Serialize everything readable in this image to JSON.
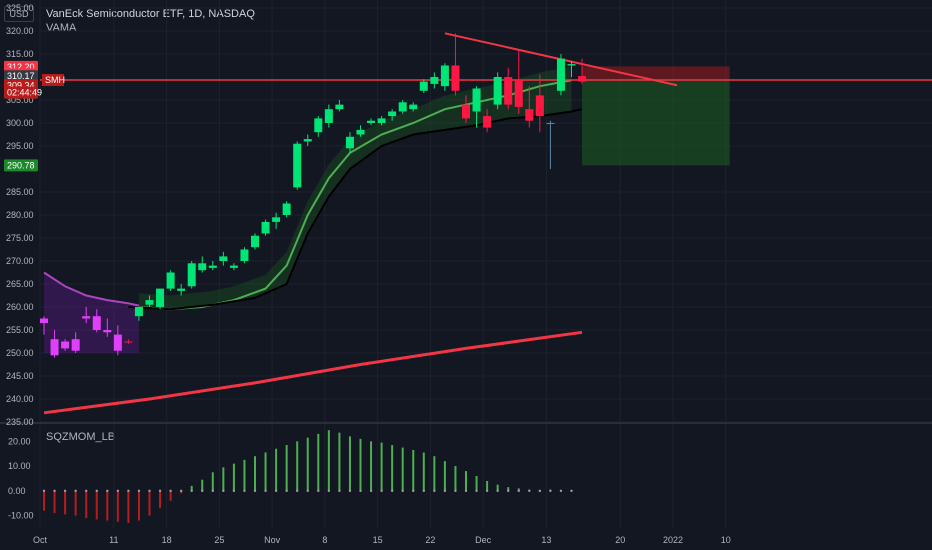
{
  "header": {
    "title": "VanEck Semiconductor ETF, 1D, NASDAQ",
    "indicator": "VAMA",
    "oscillator": "SQZMOM_LB",
    "currency": "USD"
  },
  "price_tags": [
    {
      "label": "312.20",
      "value": 312.2,
      "bg": "#f23645",
      "fg": "#ffffff"
    },
    {
      "label": "310.57",
      "value": 310.57,
      "bg": "#f23645",
      "fg": "#ffffff"
    },
    {
      "label": "310.17",
      "value": 310.17,
      "bg": "#363a45",
      "fg": "#ffffff"
    },
    {
      "label": "309.34",
      "value": 308.2,
      "bg": "#b71c1c",
      "fg": "#ffffff"
    },
    {
      "label": "02:44:49",
      "value": 306.6,
      "bg": "#b71c1c",
      "fg": "#ffffff"
    },
    {
      "label": "290.78",
      "value": 290.78,
      "bg": "#1b8a2a",
      "fg": "#ffffff"
    }
  ],
  "symbol_badge": {
    "label": "SMH",
    "value": 309.34,
    "bg": "#b71c1c",
    "fg": "#ffffff"
  },
  "colors": {
    "bull_candle": "#00e676",
    "bear_candle": "#ff1744",
    "magenta_candle": "#e040fb",
    "resistance": "#f23645",
    "ema_fast": "#4caf50",
    "ema_slow": "#000000",
    "ema_pre": "#ab47bc",
    "long_ema": "#f23645",
    "sqz_pos": "#4caf50",
    "sqz_neg": "#b71c1c",
    "grid": "#1e222d"
  },
  "chart_data": [
    {
      "type": "candlestick",
      "title": "VanEck Semiconductor ETF, 1D, NASDAQ",
      "ylim": [
        235,
        325
      ],
      "y_ticks": [
        "325.00",
        "320.00",
        "315.00",
        "305.00",
        "300.00",
        "295.00",
        "285.00",
        "280.00",
        "275.00",
        "270.00",
        "265.00",
        "260.00",
        "255.00",
        "250.00",
        "245.00",
        "240.00",
        "235.00"
      ],
      "x_ticks": [
        "Oct",
        "11",
        "18",
        "25",
        "Nov",
        "8",
        "15",
        "22",
        "Dec",
        "13",
        "20",
        "2022",
        "10"
      ],
      "candles": [
        {
          "o": 256.5,
          "h": 258.0,
          "l": 254.0,
          "c": 257.5,
          "color": "magenta"
        },
        {
          "o": 253.0,
          "h": 255.0,
          "l": 249.0,
          "c": 249.5,
          "color": "magenta"
        },
        {
          "o": 251.0,
          "h": 253.0,
          "l": 250.5,
          "c": 252.5,
          "color": "magenta"
        },
        {
          "o": 253.0,
          "h": 254.5,
          "l": 250.0,
          "c": 250.5,
          "color": "magenta"
        },
        {
          "o": 257.5,
          "h": 260.0,
          "l": 256.5,
          "c": 258.0,
          "color": "magenta"
        },
        {
          "o": 258.0,
          "h": 259.5,
          "l": 254.5,
          "c": 255.0,
          "color": "magenta"
        },
        {
          "o": 255.0,
          "h": 257.5,
          "l": 253.5,
          "c": 254.5,
          "color": "magenta"
        },
        {
          "o": 254.0,
          "h": 256.0,
          "l": 249.5,
          "c": 250.5,
          "color": "magenta"
        },
        {
          "o": 252.5,
          "h": 253.0,
          "l": 252.0,
          "c": 252.5,
          "color": "bear"
        },
        {
          "o": 258.0,
          "h": 260.0,
          "l": 257.0,
          "c": 260.0,
          "color": "bull"
        },
        {
          "o": 260.5,
          "h": 262.5,
          "l": 260.0,
          "c": 261.5,
          "color": "bull"
        },
        {
          "o": 260.0,
          "h": 264.0,
          "l": 259.5,
          "c": 264.0,
          "color": "bull"
        },
        {
          "o": 264.0,
          "h": 268.0,
          "l": 263.5,
          "c": 267.5,
          "color": "bull"
        },
        {
          "o": 263.5,
          "h": 265.0,
          "l": 262.5,
          "c": 264.0,
          "color": "bull"
        },
        {
          "o": 264.5,
          "h": 270.0,
          "l": 264.0,
          "c": 269.5,
          "color": "bull"
        },
        {
          "o": 269.5,
          "h": 271.0,
          "l": 267.5,
          "c": 268.0,
          "color": "bull"
        },
        {
          "o": 268.5,
          "h": 270.0,
          "l": 268.0,
          "c": 269.0,
          "color": "bull"
        },
        {
          "o": 270.0,
          "h": 272.0,
          "l": 269.0,
          "c": 271.0,
          "color": "bull"
        },
        {
          "o": 268.5,
          "h": 269.5,
          "l": 268.0,
          "c": 269.0,
          "color": "bull"
        },
        {
          "o": 270.0,
          "h": 273.0,
          "l": 269.5,
          "c": 272.5,
          "color": "bull"
        },
        {
          "o": 273.0,
          "h": 276.0,
          "l": 272.5,
          "c": 275.5,
          "color": "bull"
        },
        {
          "o": 276.0,
          "h": 279.0,
          "l": 275.5,
          "c": 278.5,
          "color": "bull"
        },
        {
          "o": 278.5,
          "h": 280.5,
          "l": 277.0,
          "c": 279.5,
          "color": "bull"
        },
        {
          "o": 280.0,
          "h": 283.0,
          "l": 279.5,
          "c": 282.5,
          "color": "bull"
        },
        {
          "o": 286.0,
          "h": 296.0,
          "l": 285.5,
          "c": 295.5,
          "color": "bull"
        },
        {
          "o": 296.0,
          "h": 297.5,
          "l": 295.0,
          "c": 296.5,
          "color": "bull"
        },
        {
          "o": 298.0,
          "h": 301.5,
          "l": 297.0,
          "c": 301.0,
          "color": "bull"
        },
        {
          "o": 300.0,
          "h": 304.0,
          "l": 299.0,
          "c": 303.0,
          "color": "bull"
        },
        {
          "o": 303.0,
          "h": 305.0,
          "l": 302.5,
          "c": 304.0,
          "color": "bull"
        },
        {
          "o": 294.5,
          "h": 298.0,
          "l": 293.5,
          "c": 297.0,
          "color": "bull"
        },
        {
          "o": 297.5,
          "h": 299.5,
          "l": 297.0,
          "c": 298.5,
          "color": "bull"
        },
        {
          "o": 300.0,
          "h": 301.0,
          "l": 299.5,
          "c": 300.5,
          "color": "bull"
        },
        {
          "o": 300.0,
          "h": 301.5,
          "l": 299.5,
          "c": 301.0,
          "color": "bull"
        },
        {
          "o": 301.5,
          "h": 303.0,
          "l": 300.5,
          "c": 302.5,
          "color": "bull"
        },
        {
          "o": 302.5,
          "h": 305.0,
          "l": 302.0,
          "c": 304.5,
          "color": "bull"
        },
        {
          "o": 303.0,
          "h": 304.5,
          "l": 302.5,
          "c": 304.0,
          "color": "bull"
        },
        {
          "o": 307.0,
          "h": 309.5,
          "l": 306.5,
          "c": 309.0,
          "color": "bull"
        },
        {
          "o": 308.5,
          "h": 311.0,
          "l": 307.5,
          "c": 310.0,
          "color": "bull"
        },
        {
          "o": 308.0,
          "h": 313.0,
          "l": 307.0,
          "c": 312.5,
          "color": "bull"
        },
        {
          "o": 312.5,
          "h": 319.5,
          "l": 306.0,
          "c": 307.0,
          "color": "bear"
        },
        {
          "o": 304.0,
          "h": 306.0,
          "l": 300.0,
          "c": 301.0,
          "color": "bear"
        },
        {
          "o": 302.5,
          "h": 308.0,
          "l": 299.0,
          "c": 307.5,
          "color": "bull"
        },
        {
          "o": 301.5,
          "h": 303.0,
          "l": 298.0,
          "c": 299.0,
          "color": "bear"
        },
        {
          "o": 304.0,
          "h": 311.0,
          "l": 303.0,
          "c": 310.0,
          "color": "bull"
        },
        {
          "o": 310.0,
          "h": 312.0,
          "l": 303.0,
          "c": 304.0,
          "color": "bear"
        },
        {
          "o": 309.5,
          "h": 316.0,
          "l": 302.0,
          "c": 303.5,
          "color": "bear"
        },
        {
          "o": 303.0,
          "h": 308.0,
          "l": 299.0,
          "c": 300.5,
          "color": "bear"
        },
        {
          "o": 306.0,
          "h": 310.5,
          "l": 298.0,
          "c": 301.5,
          "color": "bear"
        },
        {
          "o": 300.0,
          "h": 300.5,
          "l": 290.0,
          "c": 300.0,
          "color": "neutral"
        },
        {
          "o": 307.0,
          "h": 315.0,
          "l": 306.0,
          "c": 314.0,
          "color": "bull"
        },
        {
          "o": 312.5,
          "h": 313.5,
          "l": 310.0,
          "c": 312.8,
          "color": "bull"
        },
        {
          "o": 310.2,
          "h": 314.0,
          "l": 308.5,
          "c": 309.0,
          "color": "bear"
        }
      ],
      "series": [
        {
          "name": "EMA fast",
          "color": "#4caf50",
          "points": [
            [
              9,
              260
            ],
            [
              12,
              259.5
            ],
            [
              15,
              260
            ],
            [
              18,
              261.5
            ],
            [
              21,
              264
            ],
            [
              23,
              269
            ],
            [
              25,
              280
            ],
            [
              27,
              288
            ],
            [
              29,
              293.5
            ],
            [
              32,
              297.5
            ],
            [
              35,
              300
            ],
            [
              38,
              303
            ],
            [
              41,
              304.5
            ],
            [
              44,
              306
            ],
            [
              47,
              308
            ],
            [
              50,
              309.3
            ]
          ]
        },
        {
          "name": "EMA slow",
          "color": "#000000",
          "points": [
            [
              8,
              260
            ],
            [
              12,
              259.5
            ],
            [
              16,
              260.5
            ],
            [
              20,
              262
            ],
            [
              23,
              265
            ],
            [
              25,
              276
            ],
            [
              27,
              284
            ],
            [
              29,
              290
            ],
            [
              32,
              295
            ],
            [
              35,
              297.5
            ],
            [
              38,
              298.5
            ],
            [
              41,
              299.5
            ],
            [
              44,
              301
            ],
            [
              47,
              301.5
            ],
            [
              50,
              302.5
            ],
            [
              51,
              303
            ]
          ]
        },
        {
          "name": "EMA pre",
          "color": "#ab47bc",
          "points": [
            [
              0,
              267.5
            ],
            [
              2,
              264.5
            ],
            [
              4,
              262.5
            ],
            [
              6,
              261.5
            ],
            [
              8,
              260.8
            ],
            [
              9,
              260.3
            ]
          ]
        },
        {
          "name": "Long EMA",
          "color": "#f23645",
          "points": [
            [
              0,
              237
            ],
            [
              10,
              240
            ],
            [
              20,
              243.5
            ],
            [
              30,
              247.5
            ],
            [
              40,
              251
            ],
            [
              51,
              254.5
            ]
          ]
        }
      ],
      "trendline": {
        "from": [
          38,
          319.5
        ],
        "to": [
          60,
          308.2
        ],
        "color": "#f23645"
      },
      "horizontal_line": {
        "value": 309.34,
        "color": "#f23645"
      },
      "position_box": {
        "from_index": 51,
        "to_index": 65,
        "entry": 309.34,
        "stop": 311.0,
        "target": 290.78
      }
    },
    {
      "type": "bar",
      "title": "SQZMOM_LB",
      "ylim": [
        -15,
        27
      ],
      "y_ticks": [
        "20.00",
        "10.00",
        "0.00",
        "-10.00"
      ],
      "values": [
        -8,
        -9,
        -9.5,
        -10,
        -11,
        -11.5,
        -12,
        -12.5,
        -13,
        -12,
        -10,
        -7,
        -4,
        -1,
        2,
        4.5,
        7.5,
        9.5,
        11,
        12.5,
        14,
        15.5,
        17,
        18.5,
        20,
        21.5,
        23,
        24.5,
        23.5,
        22,
        21,
        20,
        19.5,
        18.5,
        17.5,
        16.5,
        15.5,
        14,
        12,
        10,
        8,
        6,
        4,
        2.5,
        1.5,
        1,
        0.5,
        -0.5,
        0.5,
        0.3,
        0.2
      ]
    }
  ]
}
